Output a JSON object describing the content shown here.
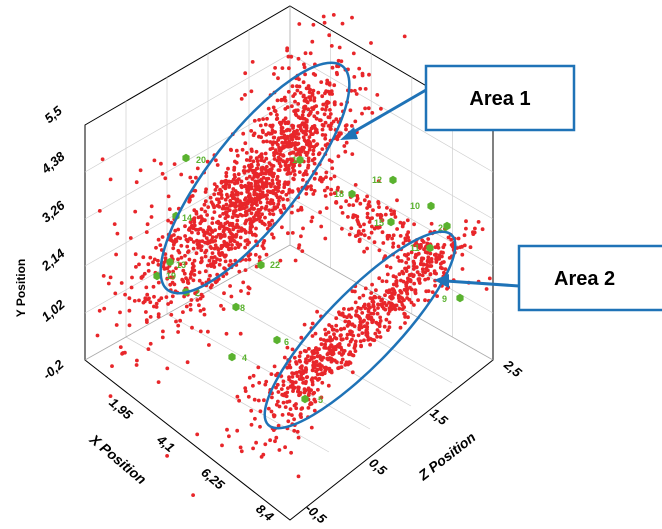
{
  "chart_data": {
    "type": "scatter",
    "projection": "3d",
    "title": "",
    "xlabel": "X Position",
    "ylabel": "Y Position",
    "zlabel": "Z Position",
    "x_ticks": [
      "1,95",
      "4,1",
      "6,25",
      "8,4"
    ],
    "y_ticks": [
      "-0,2",
      "1,02",
      "2,14",
      "3,26",
      "4,38",
      "5,5"
    ],
    "z_ticks": [
      "-0,5",
      "0,5",
      "1,5",
      "2,5"
    ],
    "xlim": [
      0,
      8.4
    ],
    "ylim": [
      -0.2,
      5.5
    ],
    "zlim": [
      -0.5,
      2.5
    ],
    "grid": true,
    "series": [
      {
        "color": "#e8262a",
        "marker": "dot"
      },
      {
        "color": "#5ab22f",
        "marker": "hexagon"
      }
    ],
    "labeled_points": [
      {
        "label": "20"
      },
      {
        "label": "16"
      },
      {
        "label": "12"
      },
      {
        "label": "18"
      },
      {
        "label": "10"
      },
      {
        "label": "15"
      },
      {
        "label": "23"
      },
      {
        "label": "11"
      },
      {
        "label": "9"
      },
      {
        "label": "14"
      },
      {
        "label": "13"
      },
      {
        "label": "19"
      },
      {
        "label": "22"
      },
      {
        "label": "2"
      },
      {
        "label": "4"
      },
      {
        "label": "6"
      },
      {
        "label": "5"
      },
      {
        "label": "8"
      }
    ],
    "annotations": [
      {
        "text": "Area 1",
        "shape": "ellipse",
        "color": "#1f73b7"
      },
      {
        "text": "Area 2",
        "shape": "ellipse",
        "color": "#1f73b7"
      }
    ]
  }
}
